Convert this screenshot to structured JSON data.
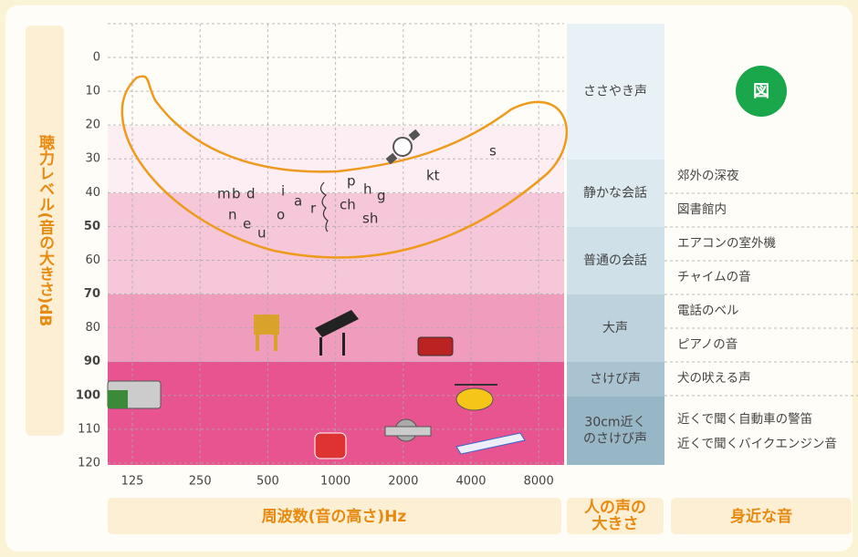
{
  "y_axis_label": "聴力レベル(音の大きさ)dB",
  "y_ticks": [
    0,
    10,
    20,
    30,
    40,
    50,
    60,
    70,
    80,
    90,
    100,
    110,
    120
  ],
  "x_ticks": [
    125,
    250,
    500,
    1000,
    2000,
    4000,
    8000
  ],
  "x_axis_label": "周波数(音の高さ)Hz",
  "voice_column_label": [
    "人の声の",
    "大きさ"
  ],
  "sounds_column_label": "身近な音",
  "badge": "図",
  "voice_levels": [
    [
      "ささやき声"
    ],
    [
      "静かな会話"
    ],
    [
      "普通の会話"
    ],
    [
      "大声"
    ],
    [
      "さけび声"
    ],
    [
      "30cm近く",
      "のさけび声"
    ]
  ],
  "nearby_sounds": [
    "郊外の深夜",
    "図書館内",
    "エアコンの室外機",
    "チャイムの音",
    "電話のベル",
    "ピアノの音",
    "犬の吠える声",
    "近くで聞く自動車の警笛",
    "近くで聞くバイクエンジン音"
  ],
  "phonemes": [
    "m",
    "b",
    "d",
    "n",
    "e",
    "u",
    "o",
    "i",
    "a",
    "r",
    "p",
    "h",
    "g",
    "ch",
    "sh",
    "kt",
    "s"
  ]
}
